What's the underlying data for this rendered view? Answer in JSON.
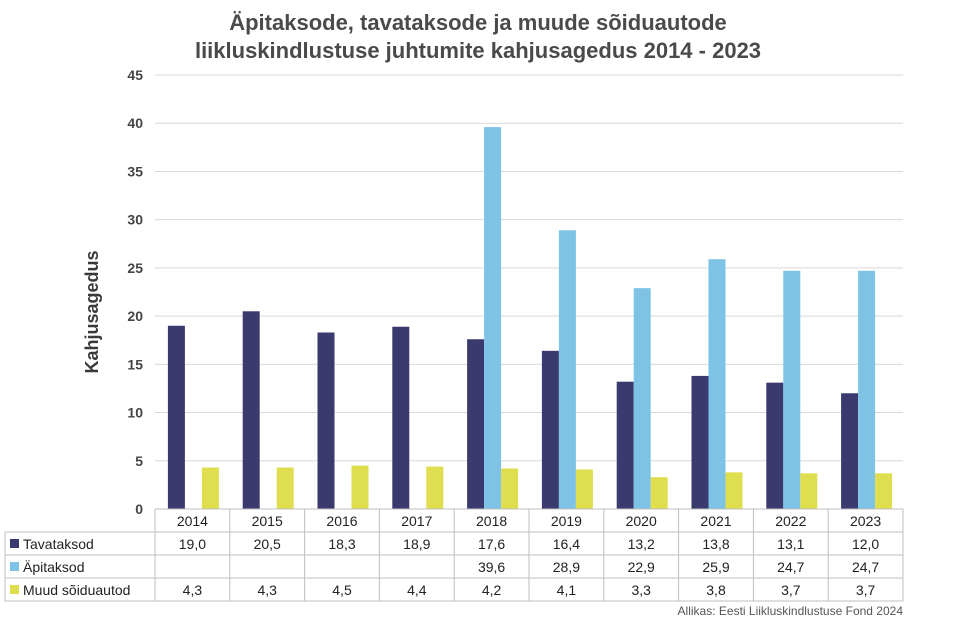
{
  "chart_data": {
    "type": "bar",
    "title_line1": "Äpitaksode, tavataksode ja muude sõiduautode",
    "title_line2": "liikluskindlustuse juhtumite kahjusagedus 2014 - 2023",
    "ylabel": "Kahjusagedus",
    "ylim": [
      0,
      45
    ],
    "yticks": [
      0,
      5,
      10,
      15,
      20,
      25,
      30,
      35,
      40,
      45
    ],
    "grid": true,
    "legend_placement": "data-table-left",
    "categories": [
      "2014",
      "2015",
      "2016",
      "2017",
      "2018",
      "2019",
      "2020",
      "2021",
      "2022",
      "2023"
    ],
    "series": [
      {
        "name": "Tavataksod",
        "color": "#3a3a6e",
        "values": [
          19.0,
          20.5,
          18.3,
          18.9,
          17.6,
          16.4,
          13.2,
          13.8,
          13.1,
          12.0
        ],
        "labels": [
          "19,0",
          "20,5",
          "18,3",
          "18,9",
          "17,6",
          "16,4",
          "13,2",
          "13,8",
          "13,1",
          "12,0"
        ]
      },
      {
        "name": "Äpitaksod",
        "color": "#7ec3e6",
        "values": [
          null,
          null,
          null,
          null,
          39.6,
          28.9,
          22.9,
          25.9,
          24.7,
          24.7
        ],
        "labels": [
          "",
          "",
          "",
          "",
          "39,6",
          "28,9",
          "22,9",
          "25,9",
          "24,7",
          "24,7"
        ]
      },
      {
        "name": "Muud sõiduautod",
        "color": "#dede4e",
        "values": [
          4.3,
          4.3,
          4.5,
          4.4,
          4.2,
          4.1,
          3.3,
          3.8,
          3.7,
          3.7
        ],
        "labels": [
          "4,3",
          "4,3",
          "4,5",
          "4,4",
          "4,2",
          "4,1",
          "3,3",
          "3,8",
          "3,7",
          "3,7"
        ]
      }
    ],
    "source": "Allikas: Eesti Liikluskindlustuse Fond 2024"
  }
}
